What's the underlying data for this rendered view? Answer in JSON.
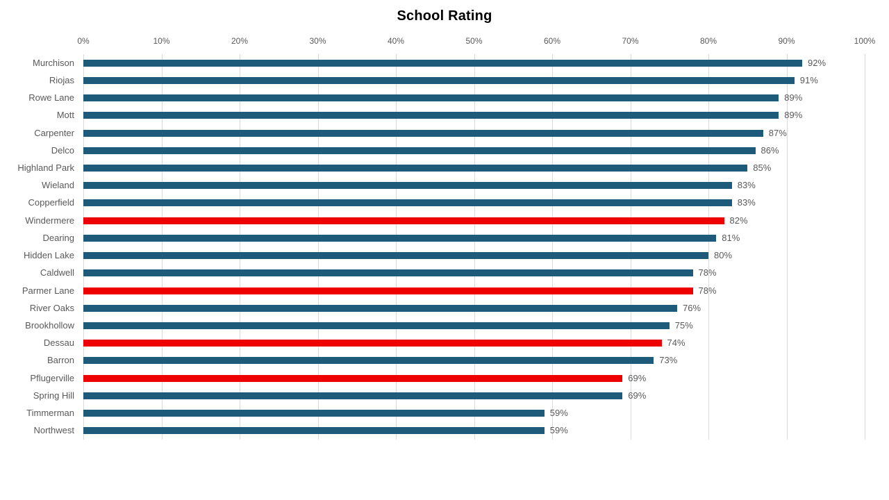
{
  "chart_data": {
    "type": "bar",
    "orientation": "horizontal",
    "title": "School Rating",
    "categories": [
      "Murchison",
      "Riojas",
      "Rowe Lane",
      "Mott",
      "Carpenter",
      "Delco",
      "Highland Park",
      "Wieland",
      "Copperfield",
      "Windermere",
      "Dearing",
      "Hidden Lake",
      "Caldwell",
      "Parmer Lane",
      "River Oaks",
      "Brookhollow",
      "Dessau",
      "Barron",
      "Pflugerville",
      "Spring Hill",
      "Timmerman",
      "Northwest"
    ],
    "values": [
      92,
      91,
      89,
      89,
      87,
      86,
      85,
      83,
      83,
      82,
      81,
      80,
      78,
      78,
      76,
      75,
      74,
      73,
      69,
      69,
      59,
      59
    ],
    "data_labels": [
      "92%",
      "91%",
      "89%",
      "89%",
      "87%",
      "86%",
      "85%",
      "83%",
      "83%",
      "82%",
      "81%",
      "80%",
      "78%",
      "78%",
      "76%",
      "75%",
      "74%",
      "73%",
      "69%",
      "69%",
      "59%",
      "59%"
    ],
    "highlighted_categories": [
      "Windermere",
      "Parmer Lane",
      "Dessau",
      "Pflugerville"
    ],
    "x_ticks": [
      "0%",
      "10%",
      "20%",
      "30%",
      "40%",
      "50%",
      "60%",
      "70%",
      "80%",
      "90%",
      "100%"
    ],
    "xlim": [
      0,
      100
    ],
    "grid": true,
    "legend": false,
    "axis_position": "top",
    "colors": {
      "bar": "#1E5B7B",
      "highlight": "#EE0000",
      "grid": "#D9D9D9",
      "tick_label": "#595959",
      "category_label": "#595959",
      "value_label": "#595959",
      "title": "#000000",
      "background": "#FFFFFF"
    }
  }
}
